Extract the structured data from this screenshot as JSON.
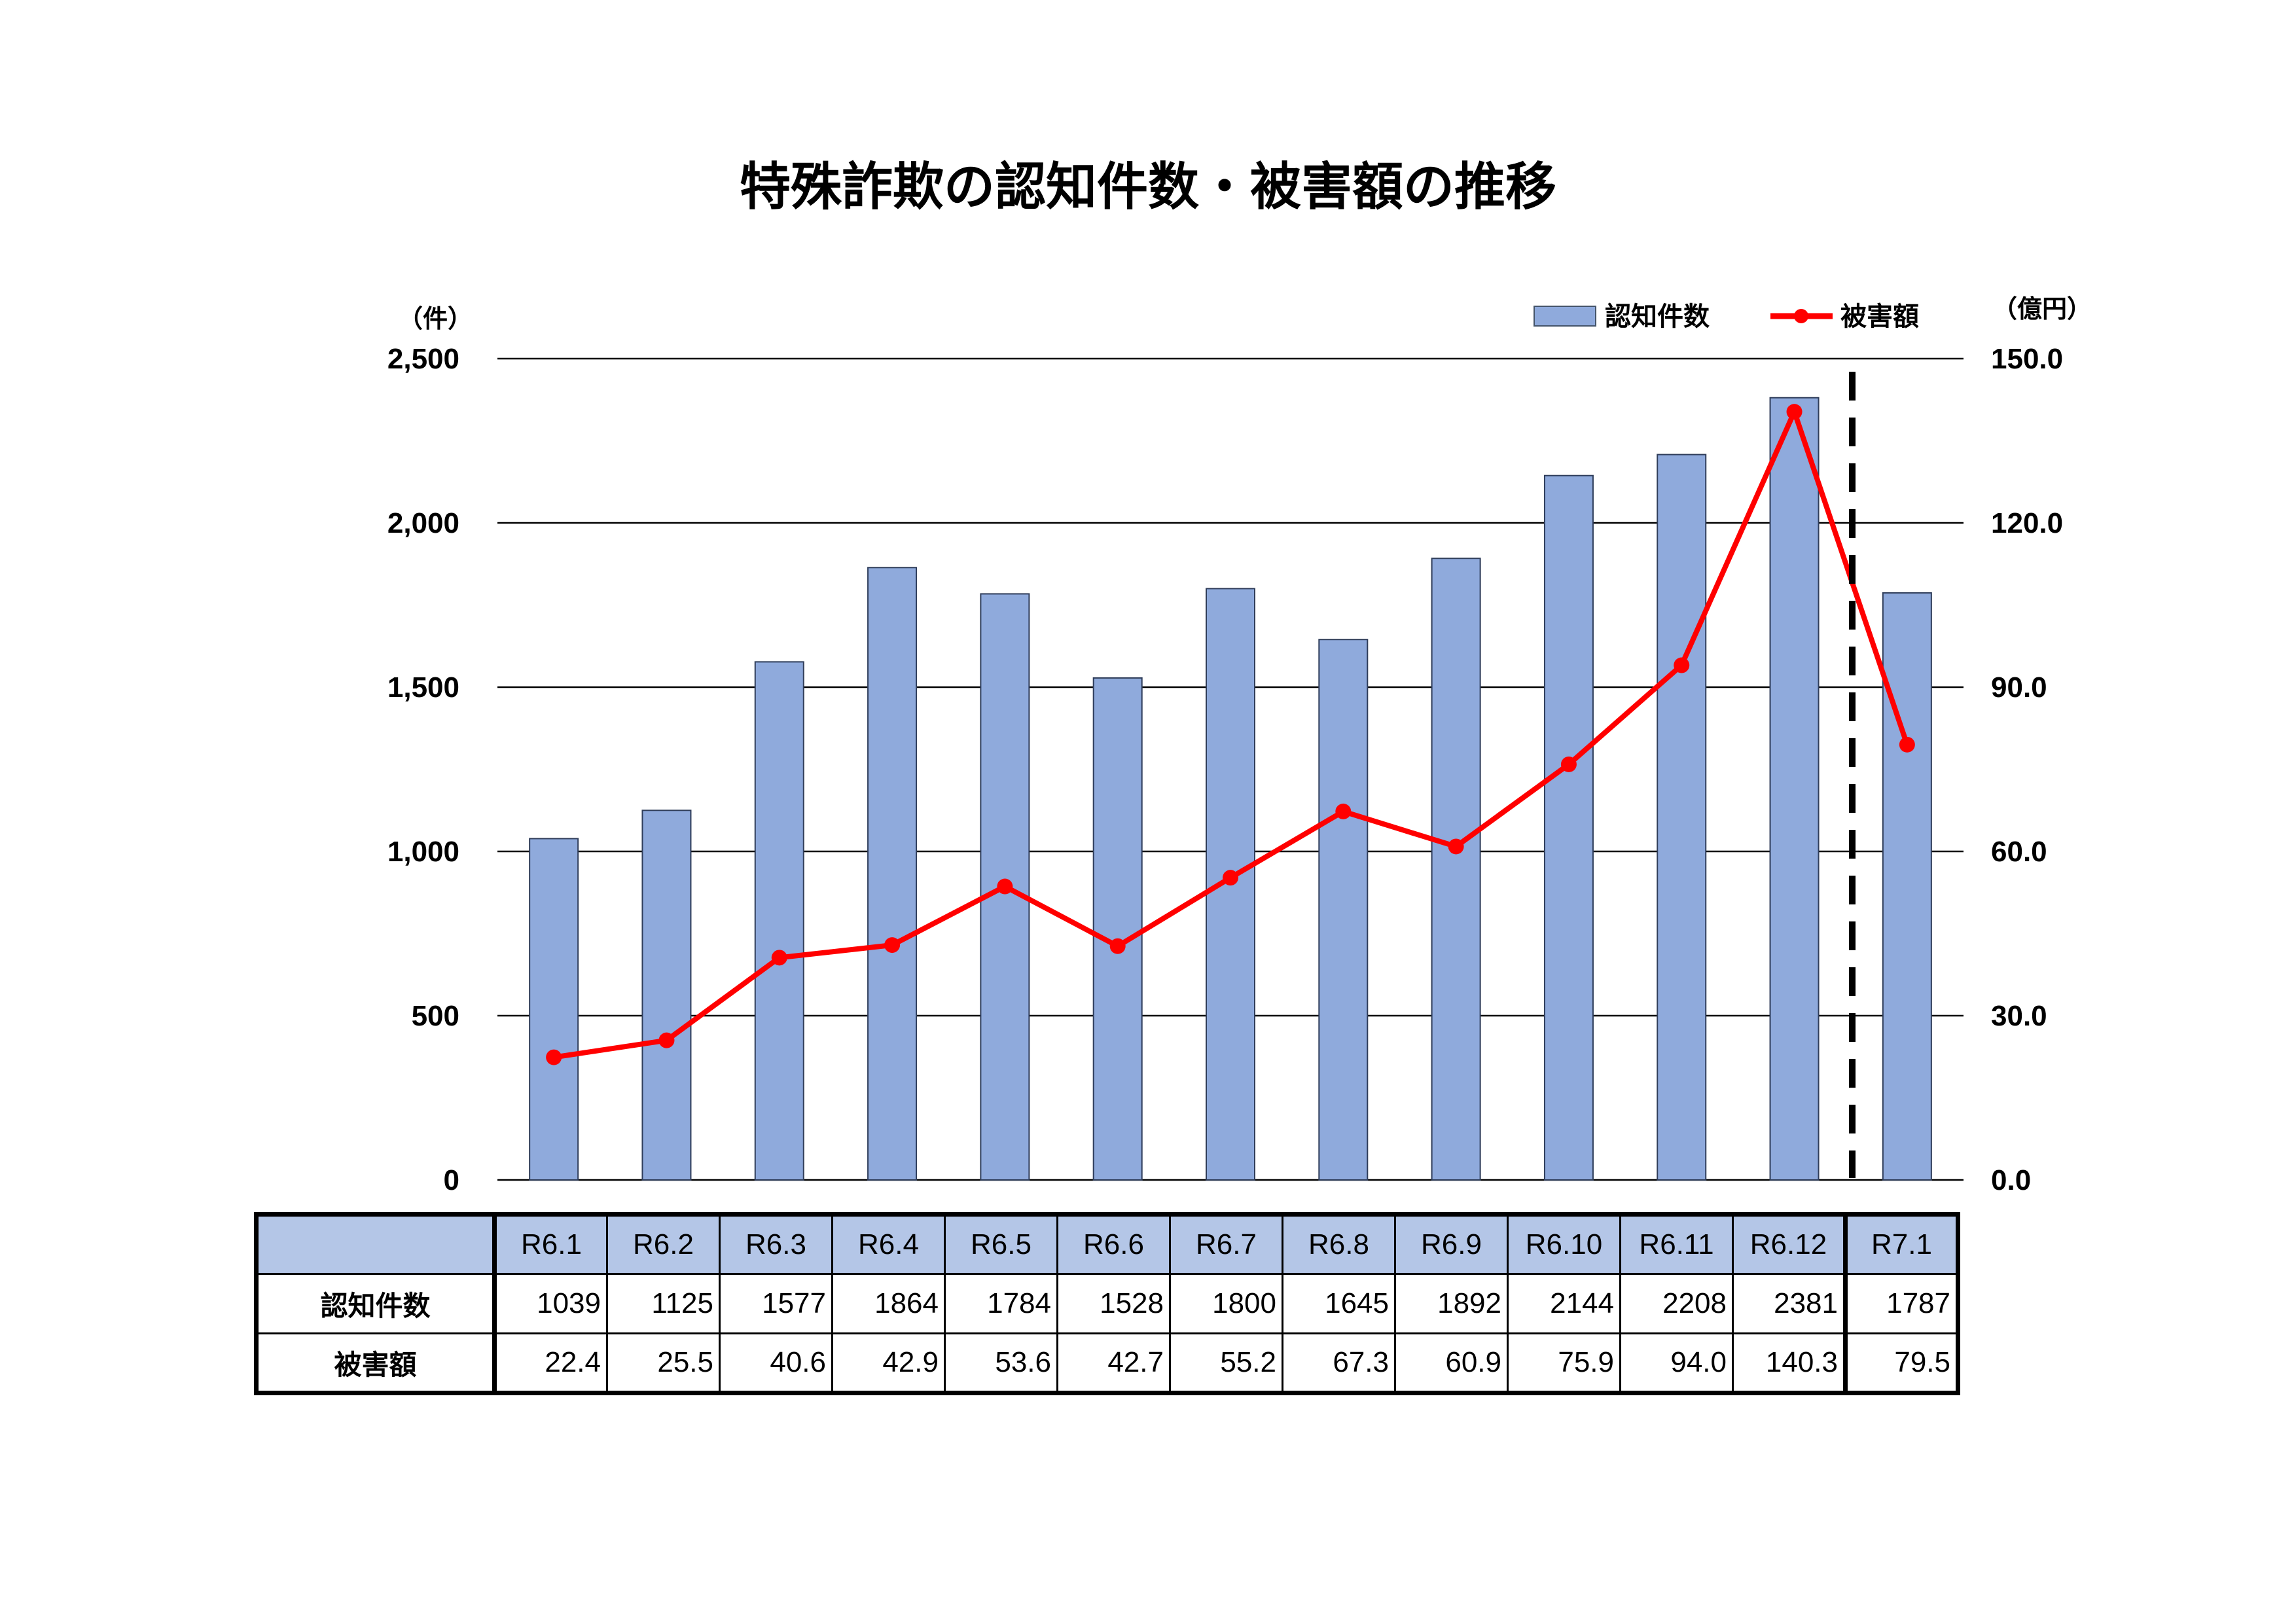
{
  "chart_data": {
    "type": "bar",
    "title": "特殊詐欺の認知件数・被害額の推移",
    "categories": [
      "R6.1",
      "R6.2",
      "R6.3",
      "R6.4",
      "R6.5",
      "R6.6",
      "R6.7",
      "R6.8",
      "R6.9",
      "R6.10",
      "R6.11",
      "R6.12",
      "R7.1"
    ],
    "series": [
      {
        "name": "認知件数",
        "type": "bar",
        "axis": "left",
        "color": "#8faadc",
        "values": [
          1039,
          1125,
          1577,
          1864,
          1784,
          1528,
          1800,
          1645,
          1892,
          2144,
          2208,
          2381,
          1787
        ]
      },
      {
        "name": "被害額",
        "type": "line",
        "axis": "right",
        "color": "#ff0000",
        "values": [
          22.4,
          25.5,
          40.6,
          42.9,
          53.6,
          42.7,
          55.2,
          67.3,
          60.9,
          75.9,
          94.0,
          140.3,
          79.5
        ]
      }
    ],
    "y_left": {
      "unit": "（件）",
      "ylim": [
        0,
        2500
      ],
      "ticks": [
        "0",
        "500",
        "1,000",
        "1,500",
        "2,000",
        "2,500"
      ]
    },
    "y_right": {
      "unit": "（億円）",
      "ylim": [
        0,
        150
      ],
      "ticks": [
        "0.0",
        "30.0",
        "60.0",
        "90.0",
        "120.0",
        "150.0"
      ]
    },
    "grid": true,
    "legend_position": "top-right",
    "divider": "dashed vertical line between R6.12 and R7.1"
  },
  "table": {
    "row_labels": [
      "認知件数",
      "被害額"
    ],
    "counts": [
      "1039",
      "1125",
      "1577",
      "1864",
      "1784",
      "1528",
      "1800",
      "1645",
      "1892",
      "2144",
      "2208",
      "2381",
      "1787"
    ],
    "damages": [
      "22.4",
      "25.5",
      "40.6",
      "42.9",
      "53.6",
      "42.7",
      "55.2",
      "67.3",
      "60.9",
      "75.9",
      "94.0",
      "140.3",
      "79.5"
    ]
  }
}
